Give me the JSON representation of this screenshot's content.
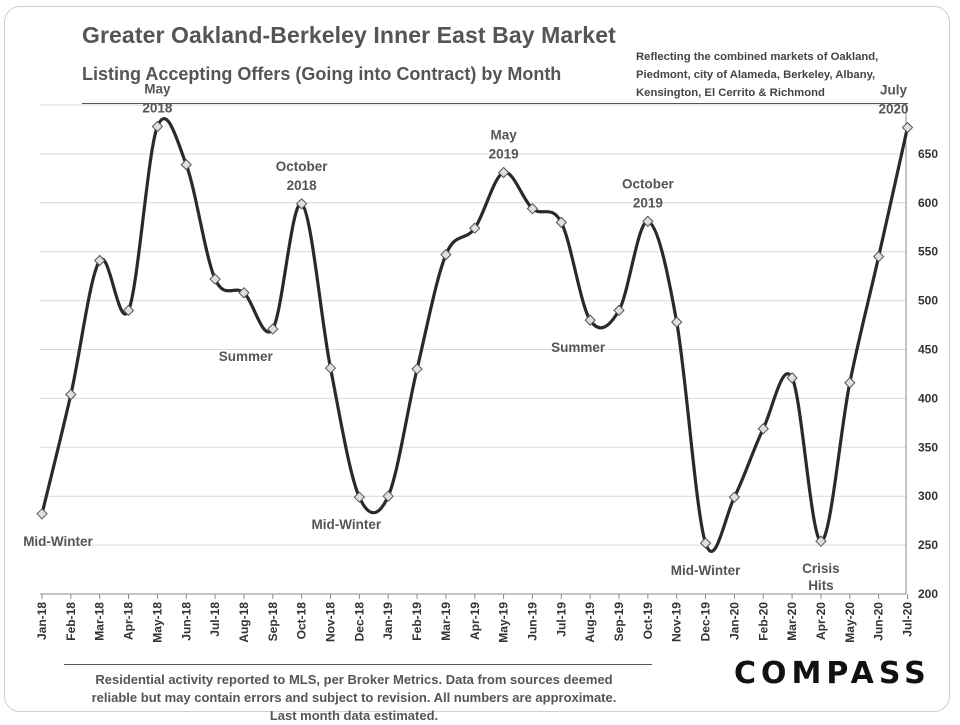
{
  "header": {
    "title": "Greater Oakland-Berkeley Inner East Bay Market",
    "subtitle": "Listing Accepting Offers (Going into Contract) by Month",
    "note_lines": [
      "Reflecting the combined markets of Oakland,",
      "Piedmont, city of Alameda, Berkeley, Albany,",
      "Kensington, El Cerrito & Richmond"
    ]
  },
  "footer": {
    "lines": [
      "Residential activity reported to MLS, per Broker Metrics. Data from sources deemed",
      "reliable but may contain errors and subject to revision. All numbers are approximate.",
      "Last month data estimated."
    ],
    "brand": "COMPASS"
  },
  "chart_data": {
    "type": "line",
    "title": "Greater Oakland-Berkeley Inner East Bay Market",
    "subtitle": "Listing Accepting Offers (Going into Contract) by Month",
    "xlabel": "",
    "ylabel": "",
    "ylim": [
      200,
      700
    ],
    "yticks": [
      200,
      250,
      300,
      350,
      400,
      450,
      500,
      550,
      600,
      650
    ],
    "grid": "horizontal",
    "y_axis_side": "right",
    "categories": [
      "Jan-18",
      "Feb-18",
      "Mar-18",
      "Apr-18",
      "May-18",
      "Jun-18",
      "Jul-18",
      "Aug-18",
      "Sep-18",
      "Oct-18",
      "Nov-18",
      "Dec-18",
      "Jan-19",
      "Feb-19",
      "Mar-19",
      "Apr-19",
      "May-19",
      "Jun-19",
      "Jul-19",
      "Aug-19",
      "Sep-19",
      "Oct-19",
      "Nov-19",
      "Dec-19",
      "Jan-20",
      "Feb-20",
      "Mar-20",
      "Apr-20",
      "May-20",
      "Jun-20",
      "Jul-20"
    ],
    "series": [
      {
        "values": [
          282,
          404,
          541,
          490,
          678,
          639,
          522,
          508,
          471,
          599,
          431,
          299,
          300,
          430,
          547,
          574,
          631,
          594,
          580,
          480,
          490,
          581,
          478,
          252,
          299,
          369,
          421,
          254,
          416,
          545,
          677
        ]
      }
    ],
    "annotations": [
      {
        "text": [
          "Mid-Winter"
        ],
        "at": "Jan-18",
        "position": "below"
      },
      {
        "text": [
          "May",
          "2018"
        ],
        "at": "May-18",
        "position": "above"
      },
      {
        "text": [
          "Summer"
        ],
        "at": "Sep-18",
        "position": "below"
      },
      {
        "text": [
          "October",
          "2018"
        ],
        "at": "Oct-18",
        "position": "above"
      },
      {
        "text": [
          "Mid-Winter"
        ],
        "at": "Dec-18",
        "position": "below"
      },
      {
        "text": [
          "May",
          "2019"
        ],
        "at": "May-19",
        "position": "above"
      },
      {
        "text": [
          "Summer"
        ],
        "at": "Aug-19",
        "position": "below"
      },
      {
        "text": [
          "October",
          "2019"
        ],
        "at": "Oct-19",
        "position": "above"
      },
      {
        "text": [
          "Mid-Winter"
        ],
        "at": "Dec-19",
        "position": "below"
      },
      {
        "text": [
          "Crisis",
          "Hits"
        ],
        "at": "Apr-20",
        "position": "below"
      },
      {
        "text": [
          "July",
          "2020"
        ],
        "at": "Jul-20",
        "position": "above"
      }
    ],
    "colors": {
      "line": "#262a33",
      "marker_fill": "#e0e0e0",
      "marker_stroke": "#555555",
      "grid": "#d9d9d9"
    }
  }
}
